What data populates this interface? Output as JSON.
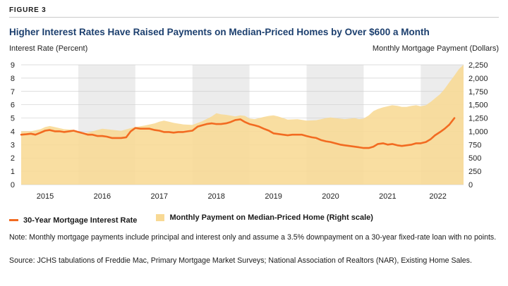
{
  "figure_label": "FIGURE 3",
  "chart_data": {
    "type": "line+area",
    "title": "Higher Interest Rates Have Raised Payments on Median-Priced Homes by Over $600 a Month",
    "ylabel_left": "Interest Rate (Percent)",
    "ylabel_right": "Monthly Mortgage Payment (Dollars)",
    "ylim_left": [
      0,
      9
    ],
    "ylim_right": [
      0,
      2250
    ],
    "yticks_left": [
      "0",
      "1",
      "2",
      "3",
      "4",
      "5",
      "6",
      "7",
      "8",
      "9"
    ],
    "yticks_right": [
      "0",
      "250",
      "500",
      "750",
      "1,000",
      "1,250",
      "1,500",
      "1,750",
      "2,000",
      "2,250"
    ],
    "x_range": [
      2014.58,
      2022.33
    ],
    "x_labels": [
      {
        "label": "2015",
        "x": 2015.0
      },
      {
        "label": "2016",
        "x": 2016.0
      },
      {
        "label": "2017",
        "x": 2017.0
      },
      {
        "label": "2018",
        "x": 2018.0
      },
      {
        "label": "2019",
        "x": 2019.0
      },
      {
        "label": "2020",
        "x": 2020.0
      },
      {
        "label": "2021",
        "x": 2021.0
      },
      {
        "label": "2022",
        "x": 2021.88
      }
    ],
    "shaded_years": [
      [
        2015.58,
        2016.58
      ],
      [
        2017.58,
        2018.58
      ],
      [
        2019.58,
        2020.58
      ],
      [
        2021.58,
        2022.33
      ]
    ],
    "series": [
      {
        "name": "30-Year Mortgage Interest Rate",
        "axis": "left",
        "color": "#f26b21",
        "points": [
          [
            2014.58,
            3.75
          ],
          [
            2014.67,
            3.78
          ],
          [
            2014.75,
            3.82
          ],
          [
            2014.83,
            3.75
          ],
          [
            2014.92,
            3.9
          ],
          [
            2015.0,
            4.05
          ],
          [
            2015.08,
            4.1
          ],
          [
            2015.17,
            4.0
          ],
          [
            2015.25,
            4.0
          ],
          [
            2015.33,
            3.95
          ],
          [
            2015.42,
            4.0
          ],
          [
            2015.5,
            4.05
          ],
          [
            2015.58,
            3.95
          ],
          [
            2015.67,
            3.85
          ],
          [
            2015.75,
            3.75
          ],
          [
            2015.83,
            3.75
          ],
          [
            2015.92,
            3.65
          ],
          [
            2016.0,
            3.65
          ],
          [
            2016.08,
            3.6
          ],
          [
            2016.17,
            3.5
          ],
          [
            2016.25,
            3.5
          ],
          [
            2016.33,
            3.5
          ],
          [
            2016.42,
            3.55
          ],
          [
            2016.5,
            4.0
          ],
          [
            2016.58,
            4.25
          ],
          [
            2016.67,
            4.2
          ],
          [
            2016.75,
            4.2
          ],
          [
            2016.83,
            4.2
          ],
          [
            2016.92,
            4.1
          ],
          [
            2017.0,
            4.05
          ],
          [
            2017.08,
            3.95
          ],
          [
            2017.17,
            3.95
          ],
          [
            2017.25,
            3.9
          ],
          [
            2017.33,
            3.95
          ],
          [
            2017.42,
            3.95
          ],
          [
            2017.5,
            4.0
          ],
          [
            2017.58,
            4.05
          ],
          [
            2017.67,
            4.35
          ],
          [
            2017.75,
            4.45
          ],
          [
            2017.83,
            4.55
          ],
          [
            2017.92,
            4.6
          ],
          [
            2018.0,
            4.55
          ],
          [
            2018.08,
            4.55
          ],
          [
            2018.17,
            4.6
          ],
          [
            2018.25,
            4.7
          ],
          [
            2018.33,
            4.85
          ],
          [
            2018.42,
            4.9
          ],
          [
            2018.5,
            4.7
          ],
          [
            2018.58,
            4.55
          ],
          [
            2018.67,
            4.45
          ],
          [
            2018.75,
            4.35
          ],
          [
            2018.83,
            4.2
          ],
          [
            2018.92,
            4.05
          ],
          [
            2019.0,
            3.85
          ],
          [
            2019.08,
            3.8
          ],
          [
            2019.17,
            3.75
          ],
          [
            2019.25,
            3.7
          ],
          [
            2019.33,
            3.75
          ],
          [
            2019.42,
            3.75
          ],
          [
            2019.5,
            3.75
          ],
          [
            2019.58,
            3.65
          ],
          [
            2019.67,
            3.55
          ],
          [
            2019.75,
            3.5
          ],
          [
            2019.83,
            3.35
          ],
          [
            2019.92,
            3.25
          ],
          [
            2020.0,
            3.2
          ],
          [
            2020.08,
            3.1
          ],
          [
            2020.17,
            3.0
          ],
          [
            2020.25,
            2.95
          ],
          [
            2020.33,
            2.9
          ],
          [
            2020.42,
            2.85
          ],
          [
            2020.5,
            2.8
          ],
          [
            2020.58,
            2.75
          ],
          [
            2020.67,
            2.75
          ],
          [
            2020.75,
            2.85
          ],
          [
            2020.83,
            3.05
          ],
          [
            2020.92,
            3.1
          ],
          [
            2021.0,
            3.0
          ],
          [
            2021.08,
            3.05
          ],
          [
            2021.17,
            2.95
          ],
          [
            2021.25,
            2.9
          ],
          [
            2021.33,
            2.95
          ],
          [
            2021.42,
            3.0
          ],
          [
            2021.5,
            3.1
          ],
          [
            2021.58,
            3.1
          ],
          [
            2021.67,
            3.2
          ],
          [
            2021.75,
            3.4
          ],
          [
            2021.83,
            3.7
          ],
          [
            2021.92,
            3.95
          ],
          [
            2022.0,
            4.2
          ],
          [
            2022.08,
            4.5
          ],
          [
            2022.17,
            5.0
          ]
        ]
      },
      {
        "name": "Monthly Payment on Median-Priced Home (Right scale)",
        "axis": "right",
        "color": "#f8d994",
        "points": [
          [
            2014.58,
            1000
          ],
          [
            2014.75,
            1000
          ],
          [
            2014.92,
            1040
          ],
          [
            2015.0,
            1080
          ],
          [
            2015.08,
            1100
          ],
          [
            2015.17,
            1080
          ],
          [
            2015.33,
            1040
          ],
          [
            2015.5,
            1030
          ],
          [
            2015.58,
            980
          ],
          [
            2015.67,
            960
          ],
          [
            2015.83,
            1000
          ],
          [
            2016.0,
            1050
          ],
          [
            2016.17,
            1030
          ],
          [
            2016.33,
            1010
          ],
          [
            2016.5,
            1060
          ],
          [
            2016.58,
            1080
          ],
          [
            2016.75,
            1110
          ],
          [
            2016.92,
            1150
          ],
          [
            2017.0,
            1180
          ],
          [
            2017.08,
            1200
          ],
          [
            2017.17,
            1180
          ],
          [
            2017.25,
            1160
          ],
          [
            2017.42,
            1130
          ],
          [
            2017.58,
            1120
          ],
          [
            2017.75,
            1190
          ],
          [
            2017.92,
            1280
          ],
          [
            2018.0,
            1340
          ],
          [
            2018.08,
            1320
          ],
          [
            2018.17,
            1310
          ],
          [
            2018.33,
            1280
          ],
          [
            2018.42,
            1300
          ],
          [
            2018.5,
            1290
          ],
          [
            2018.58,
            1240
          ],
          [
            2018.67,
            1230
          ],
          [
            2018.75,
            1250
          ],
          [
            2018.83,
            1270
          ],
          [
            2018.92,
            1290
          ],
          [
            2019.0,
            1300
          ],
          [
            2019.08,
            1280
          ],
          [
            2019.17,
            1250
          ],
          [
            2019.25,
            1220
          ],
          [
            2019.42,
            1230
          ],
          [
            2019.58,
            1200
          ],
          [
            2019.75,
            1210
          ],
          [
            2019.92,
            1250
          ],
          [
            2020.0,
            1260
          ],
          [
            2020.08,
            1250
          ],
          [
            2020.25,
            1230
          ],
          [
            2020.42,
            1250
          ],
          [
            2020.5,
            1230
          ],
          [
            2020.58,
            1240
          ],
          [
            2020.67,
            1300
          ],
          [
            2020.75,
            1380
          ],
          [
            2020.83,
            1420
          ],
          [
            2020.92,
            1450
          ],
          [
            2021.0,
            1470
          ],
          [
            2021.08,
            1490
          ],
          [
            2021.17,
            1480
          ],
          [
            2021.25,
            1460
          ],
          [
            2021.33,
            1460
          ],
          [
            2021.42,
            1480
          ],
          [
            2021.5,
            1490
          ],
          [
            2021.58,
            1470
          ],
          [
            2021.67,
            1490
          ],
          [
            2021.75,
            1550
          ],
          [
            2021.83,
            1620
          ],
          [
            2021.92,
            1700
          ],
          [
            2022.0,
            1800
          ],
          [
            2022.08,
            1920
          ],
          [
            2022.17,
            2050
          ],
          [
            2022.25,
            2170
          ],
          [
            2022.33,
            2250
          ]
        ]
      }
    ]
  },
  "legend": {
    "line_label": "30-Year Mortgage Interest Rate",
    "area_label": "Monthly Payment on Median-Priced Home (Right scale)"
  },
  "notes": {
    "note": "Note: Monthly mortgage payments include principal and interest only and assume a 3.5% downpayment on a 30-year fixed-rate loan with no points.",
    "source": "Source: JCHS tabulations of Freddie Mac, Primary Mortgage Market Surveys; National Association of Realtors (NAR), Existing Home Sales."
  },
  "colors": {
    "title": "#1c3f6e",
    "line": "#f26b21",
    "area": "#f8d994",
    "shade": "#ececec",
    "grid": "#d0d0d0"
  }
}
